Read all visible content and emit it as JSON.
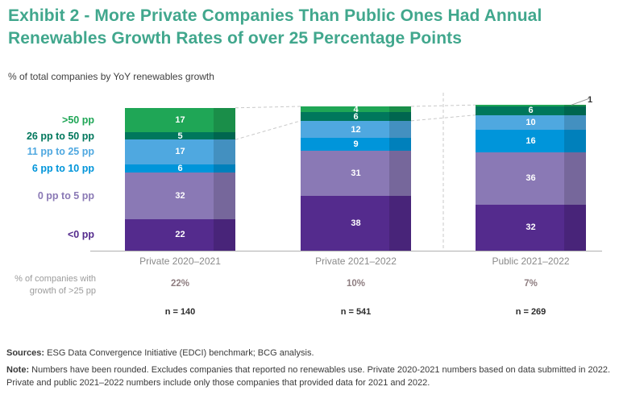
{
  "title": "Exhibit 2 - More Private Companies Than Public Ones Had Annual Renewables Growth Rates of over 25 Percentage Points",
  "subtitle": "% of total companies by YoY renewables growth",
  "chart_data": {
    "type": "bar",
    "stacked": true,
    "unit": "% of total companies",
    "categories": [
      "Private 2020–2021",
      "Private 2021–2022",
      "Public 2021–2022"
    ],
    "series": [
      {
        "name": ">50 pp",
        "color": "#1fa656",
        "values": [
          17,
          4,
          1
        ]
      },
      {
        "name": "26 pp to 50 pp",
        "color": "#00775c",
        "values": [
          5,
          6,
          6
        ]
      },
      {
        "name": "11 pp to 25 pp",
        "color": "#4fa8e0",
        "values": [
          17,
          12,
          10
        ]
      },
      {
        "name": "6 pp to 10 pp",
        "color": "#0095da",
        "values": [
          6,
          9,
          16
        ]
      },
      {
        "name": "0 pp to 5 pp",
        "color": "#8a79b5",
        "values": [
          32,
          31,
          36
        ]
      },
      {
        "name": "<0 pp",
        "color": "#542b8d",
        "values": [
          22,
          38,
          32
        ]
      }
    ],
    "outside_label": {
      "category_index": 2,
      "series_index": 0,
      "text": "1"
    },
    "growth_divider_after_series": 2,
    "summary_row": {
      "label": "% of companies with growth of >25 pp",
      "values": [
        "22%",
        "10%",
        "7%"
      ]
    },
    "n_row": {
      "values": [
        "n = 140",
        "n = 541",
        "n = 269"
      ]
    },
    "legend_position": "left",
    "grid": false
  },
  "footer": {
    "sources_label": "Sources:",
    "sources_text": "ESG Data Convergence Initiative (EDCI) benchmark; BCG analysis.",
    "note_label": "Note:",
    "note_text": "Numbers have been rounded. Excludes companies that reported no renewables use. Private 2020-2021 numbers based on data submitted in 2022. Private and public 2021–2022 numbers include only those companies that provided data for 2021 and 2022."
  },
  "colors": {
    "title": "#41a78d",
    "axis": "#b0b0b0",
    "dashed_line": "#c9c9c9",
    "category_label": "#8a8a8a",
    "summary_value": "#8e7d80",
    "n_value": "#2d2d2d",
    "bar_side_shade": "rgba(0,0,0,0.14)"
  }
}
